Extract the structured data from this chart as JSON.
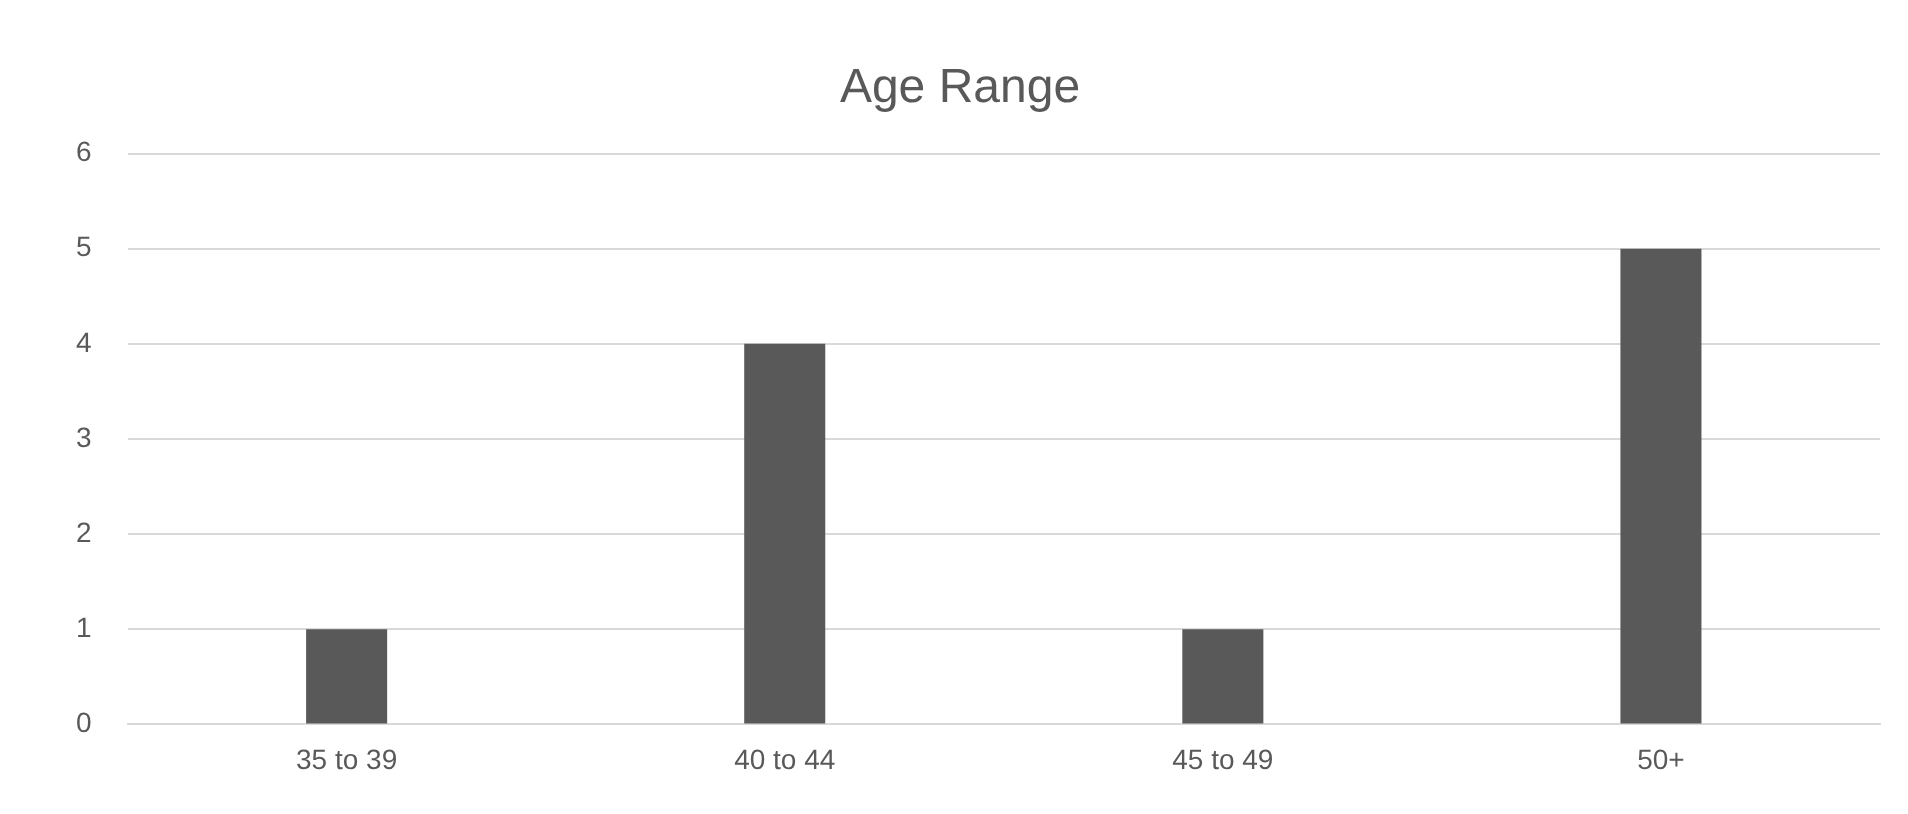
{
  "chart_data": {
    "type": "bar",
    "title": "Age Range",
    "categories": [
      "35 to 39",
      "40 to 44",
      "45 to 49",
      "50+"
    ],
    "values": [
      1,
      4,
      1,
      5
    ],
    "color": "#595959",
    "ylim": [
      0,
      6
    ],
    "yticks": [
      0,
      1,
      2,
      3,
      4,
      5,
      6
    ],
    "grid": "y"
  }
}
